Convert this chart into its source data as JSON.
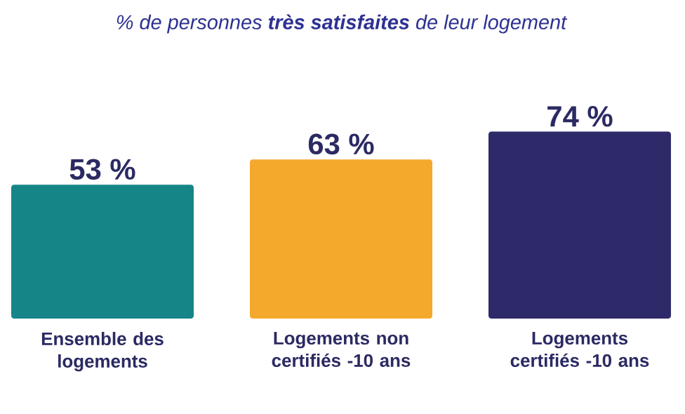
{
  "chart_data": {
    "type": "bar",
    "title": "% de personnes **très satisfaites** de leur logement",
    "categories": [
      "Ensemble des logements",
      "Logements non certifiés -10 ans",
      "Logements certifiés -10 ans"
    ],
    "values": [
      53,
      63,
      74
    ],
    "value_labels": [
      "53 %",
      "63 %",
      "74 %"
    ],
    "colors": [
      "#158588",
      "#f4a92c",
      "#2e2a6a"
    ]
  }
}
